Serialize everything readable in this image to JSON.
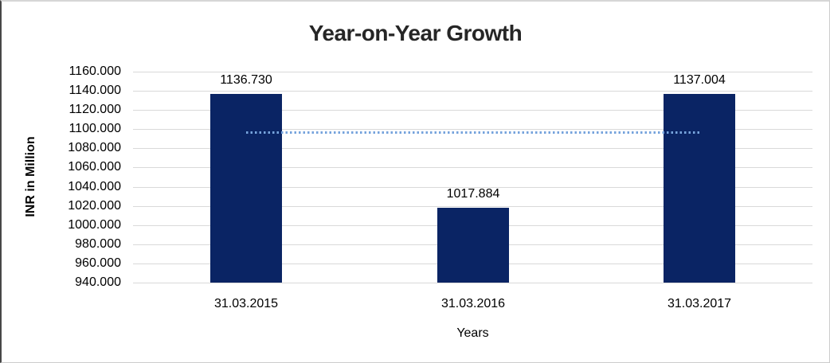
{
  "chart_data": {
    "type": "bar",
    "title": "Year-on-Year Growth",
    "categories": [
      "31.03.2015",
      "31.03.2016",
      "31.03.2017"
    ],
    "values": [
      1136.73,
      1017.884,
      1137.004
    ],
    "value_labels": [
      "1136.730",
      "1017.884",
      "1137.004"
    ],
    "xlabel": "Years",
    "ylabel": "INR in Million",
    "ylim": [
      940,
      1160
    ],
    "ytick_interval": 20,
    "ytick_labels": [
      "1160.000",
      "1140.000",
      "1120.000",
      "1100.000",
      "1080.000",
      "1060.000",
      "1040.000",
      "1020.000",
      "1000.000",
      "980.000",
      "960.000",
      "940.000"
    ],
    "grid": true,
    "legend": "none",
    "trendline": {
      "type": "linear",
      "style": "dotted",
      "values": [
        1097.1,
        1097.2,
        1097.3
      ]
    },
    "colors": {
      "bar": "#0a2464",
      "trendline": "#76a3dc",
      "gridline": "#d9d9d9",
      "title_text": "#262626",
      "axis_text": "#000000"
    }
  }
}
